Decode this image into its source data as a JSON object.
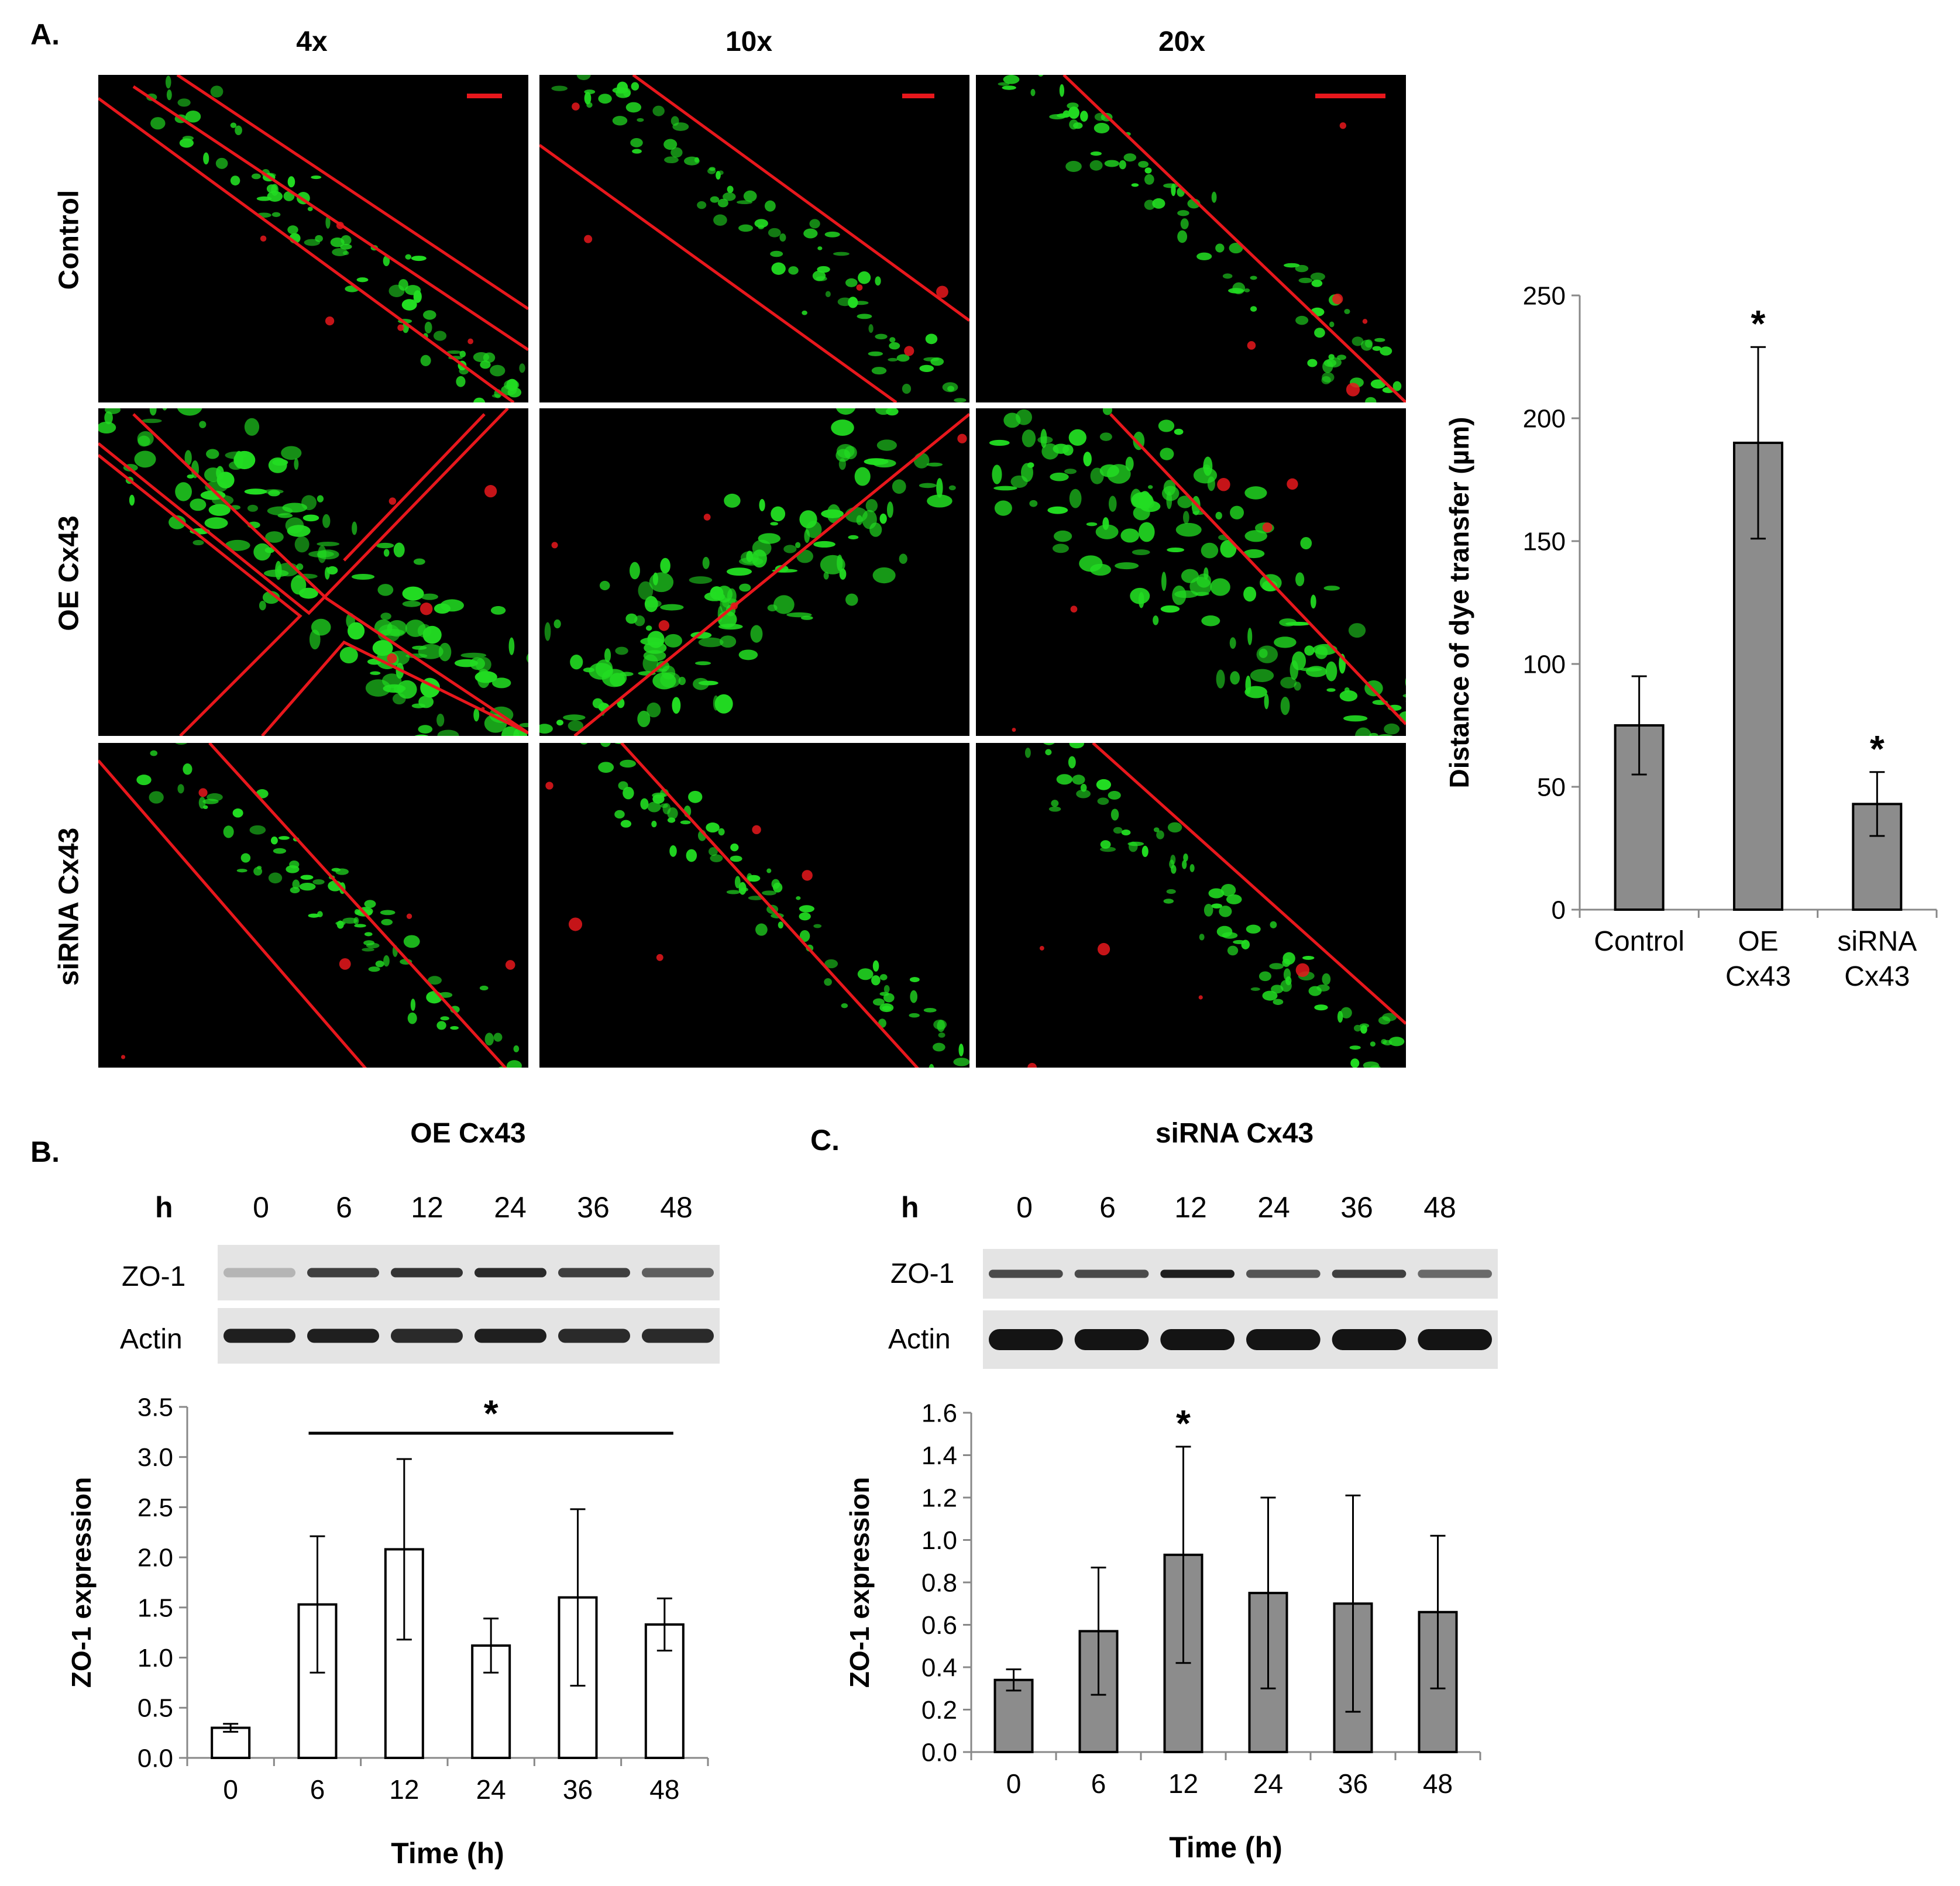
{
  "panel_labels": {
    "a": "A.",
    "b": "B.",
    "c": "C."
  },
  "magnifications": [
    "4x",
    "10x",
    "20x"
  ],
  "conditions": [
    "Control",
    "OE Cx43",
    "siRNA Cx43"
  ],
  "panel_b": {
    "title": "OE Cx43",
    "hours_label": "h",
    "hours": [
      "0",
      "6",
      "12",
      "24",
      "36",
      "48"
    ],
    "blots": [
      "ZO-1",
      "Actin"
    ]
  },
  "panel_c": {
    "title": "siRNA Cx43",
    "hours_label": "h",
    "hours": [
      "0",
      "6",
      "12",
      "24",
      "36",
      "48"
    ],
    "blots": [
      "ZO-1",
      "Actin"
    ]
  },
  "colors": {
    "bar_gray": "#8c8c8c",
    "bar_white": "#ffffff",
    "line_red": "#e8171c",
    "signal_green": "#22dd22"
  },
  "chart_data": [
    {
      "id": "dye-transfer",
      "type": "bar",
      "categories": [
        "Control",
        "OE\nCx43",
        "siRNA\nCx43"
      ],
      "values": [
        75,
        190,
        43
      ],
      "errors": [
        20,
        39,
        13
      ],
      "significant": [
        false,
        true,
        true
      ],
      "significance_marker": "*",
      "ylabel": "Distance of dye transfer (µm)",
      "xlabel": "",
      "ylim": [
        0,
        250
      ],
      "yticks": [
        0,
        50,
        100,
        150,
        200,
        250
      ],
      "bar_color": "#8c8c8c",
      "grid": false
    },
    {
      "id": "zo1-oe",
      "type": "bar",
      "categories": [
        "0",
        "6",
        "12",
        "24",
        "36",
        "48"
      ],
      "values": [
        0.3,
        1.53,
        2.08,
        1.12,
        1.6,
        1.33
      ],
      "errors": [
        0.04,
        0.68,
        0.9,
        0.27,
        0.88,
        0.26
      ],
      "significance_marker": "*",
      "significance_span": [
        "6",
        "48"
      ],
      "ylabel": "ZO-1 expression",
      "xlabel": "Time (h)",
      "ylim": [
        0,
        3.5
      ],
      "yticks": [
        "0.0",
        "0.5",
        "1.0",
        "1.5",
        "2.0",
        "2.5",
        "3.0",
        "3.5"
      ],
      "bar_color": "#ffffff",
      "grid": false
    },
    {
      "id": "zo1-sirna",
      "type": "bar",
      "categories": [
        "0",
        "6",
        "12",
        "24",
        "36",
        "48"
      ],
      "values": [
        0.34,
        0.57,
        0.93,
        0.75,
        0.7,
        0.66
      ],
      "errors": [
        0.05,
        0.3,
        0.51,
        0.45,
        0.51,
        0.36
      ],
      "significant": [
        false,
        false,
        true,
        false,
        false,
        false
      ],
      "significance_marker": "*",
      "ylabel": "ZO-1 expression",
      "xlabel": "Time (h)",
      "ylim": [
        0,
        1.6
      ],
      "yticks": [
        "0.0",
        "0.2",
        "0.4",
        "0.6",
        "0.8",
        "1.0",
        "1.2",
        "1.4",
        "1.6"
      ],
      "bar_color": "#8c8c8c",
      "grid": false
    }
  ]
}
